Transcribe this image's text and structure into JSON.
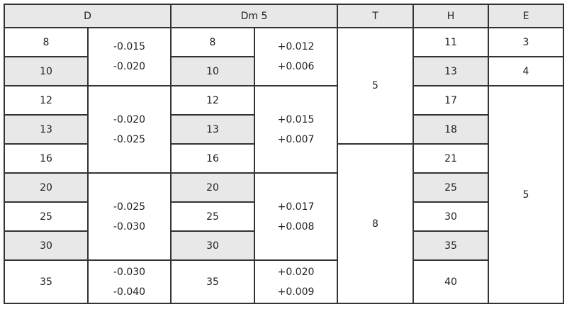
{
  "table": {
    "header": [
      "D",
      "Dm 5",
      "T",
      "H",
      "E"
    ],
    "rows": [
      [
        "8",
        [
          "-0.015",
          "-0.020"
        ],
        "8",
        [
          "+0.012",
          "+0.006"
        ],
        "5",
        "11",
        "3"
      ],
      [
        "10",
        "10",
        "13",
        "4"
      ],
      [
        "12",
        [
          "-0.020",
          "-0.025"
        ],
        "12",
        [
          "+0.015",
          "+0.007"
        ],
        "17",
        "5"
      ],
      [
        "13",
        "13",
        "18"
      ],
      [
        "16",
        "16",
        "8",
        "21"
      ],
      [
        "20",
        [
          "-0.025",
          "-0.030"
        ],
        "20",
        [
          "+0.017",
          "+0.008"
        ],
        "25"
      ],
      [
        "25",
        "25",
        "30"
      ],
      [
        "30",
        "30",
        "35"
      ],
      [
        "35",
        [
          "-0.030",
          "-0.040"
        ],
        "35",
        [
          "+0.020",
          "+0.009"
        ],
        "40"
      ]
    ]
  }
}
